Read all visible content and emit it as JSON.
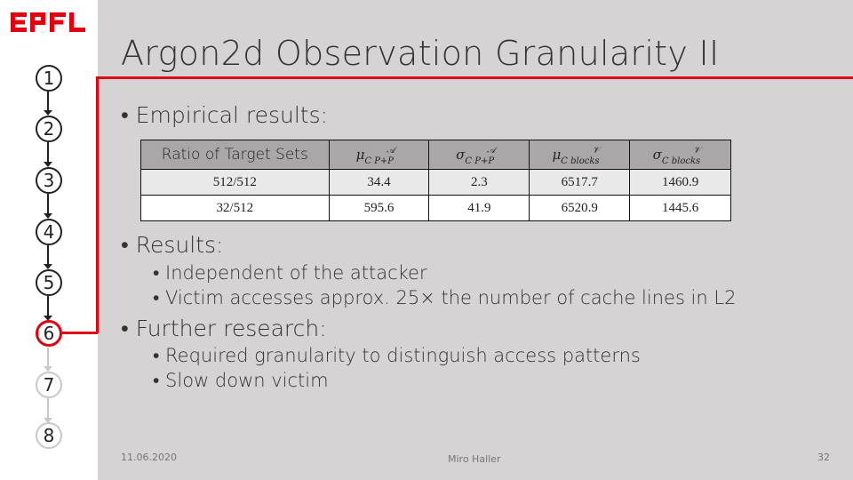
{
  "brand": {
    "logo_text": "EPFL",
    "accent": "#e3000f"
  },
  "slide": {
    "title": "Argon2d Observation Granularity II"
  },
  "nav": {
    "items": [
      {
        "label": "1",
        "state": "done"
      },
      {
        "label": "2",
        "state": "done"
      },
      {
        "label": "3",
        "state": "done"
      },
      {
        "label": "4",
        "state": "done"
      },
      {
        "label": "5",
        "state": "done"
      },
      {
        "label": "6",
        "state": "active"
      },
      {
        "label": "7",
        "state": "future"
      },
      {
        "label": "8",
        "state": "future"
      }
    ]
  },
  "content": {
    "b1": "• Empirical results:",
    "table": {
      "header_first": "Ratio of Target Sets",
      "header_mu_a": "μ",
      "header_sigma_a": "σ",
      "header_mu_v": "μ",
      "header_sigma_v": "σ",
      "sub_cpp": "C P+P",
      "sub_blocks": "C blocks",
      "sup_a": "𝒜",
      "sup_v": "𝒱",
      "rows": [
        [
          "512/512",
          "34.4",
          "2.3",
          "6517.7",
          "1460.9"
        ],
        [
          "32/512",
          "595.6",
          "41.9",
          "6520.9",
          "1445.6"
        ]
      ]
    },
    "b2": "• Results:",
    "b2_1": "• Independent of the attacker",
    "b2_2": "• Victim accesses approx. 25× the number of cache lines in L2",
    "b3": "• Further research:",
    "b3_1": "• Required granularity to distinguish access patterns",
    "b3_2": "• Slow down victim"
  },
  "footer": {
    "date": "11.06.2020",
    "author": "Miro Haller",
    "page": "32"
  }
}
